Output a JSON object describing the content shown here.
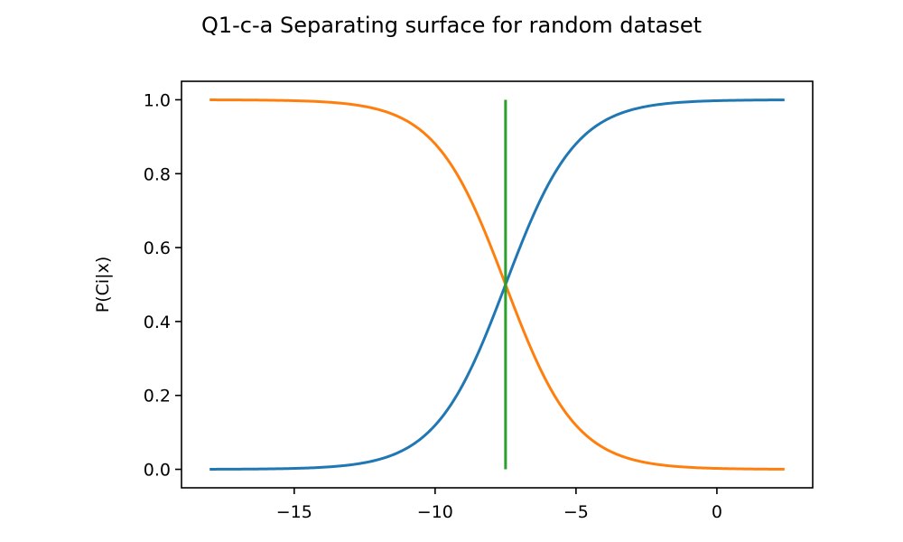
{
  "chart_data": {
    "type": "line",
    "title": "Q1-c-a Separating surface for random dataset",
    "xlabel": "",
    "ylabel": "P(Ci|x)",
    "xlim": [
      -19,
      3.4
    ],
    "ylim": [
      -0.05,
      1.05
    ],
    "x_range": [
      -18,
      2.4
    ],
    "xticks": [
      -15,
      -10,
      -5,
      0
    ],
    "xtick_labels": [
      "−15",
      "−10",
      "−5",
      "0"
    ],
    "yticks": [
      0.0,
      0.2,
      0.4,
      0.6,
      0.8,
      1.0
    ],
    "ytick_labels": [
      "0.0",
      "0.2",
      "0.4",
      "0.6",
      "0.8",
      "1.0"
    ],
    "grid": false,
    "legend": "none",
    "series": [
      {
        "color": "#1f77b4",
        "x": [
          -18,
          -16,
          -14,
          -12,
          -11,
          -10,
          -9.5,
          -9,
          -8.5,
          -8,
          -7.5,
          -7,
          -6.5,
          -6,
          -5.5,
          -5,
          -4,
          -3,
          -1,
          1,
          2.4
        ],
        "y": [
          0.0,
          0.0,
          0.004,
          0.018,
          0.044,
          0.106,
          0.162,
          0.241,
          0.343,
          0.463,
          0.5,
          0.537,
          0.657,
          0.759,
          0.838,
          0.894,
          0.956,
          0.982,
          0.997,
          0.999,
          1.0
        ]
      },
      {
        "color": "#ff7f0e",
        "x": [
          -18,
          -16,
          -14,
          -12,
          -11,
          -10,
          -9.5,
          -9,
          -8.5,
          -8,
          -7.5,
          -7,
          -6.5,
          -6,
          -5.5,
          -5,
          -4,
          -3,
          -1,
          1,
          2.4
        ],
        "y": [
          1.0,
          1.0,
          0.996,
          0.982,
          0.956,
          0.894,
          0.838,
          0.759,
          0.657,
          0.537,
          0.5,
          0.463,
          0.343,
          0.241,
          0.162,
          0.106,
          0.044,
          0.018,
          0.003,
          0.001,
          0.0
        ]
      },
      {
        "color": "#2ca02c",
        "x": [
          -7.5,
          -7.5
        ],
        "y": [
          0.0,
          1.0
        ]
      }
    ]
  }
}
